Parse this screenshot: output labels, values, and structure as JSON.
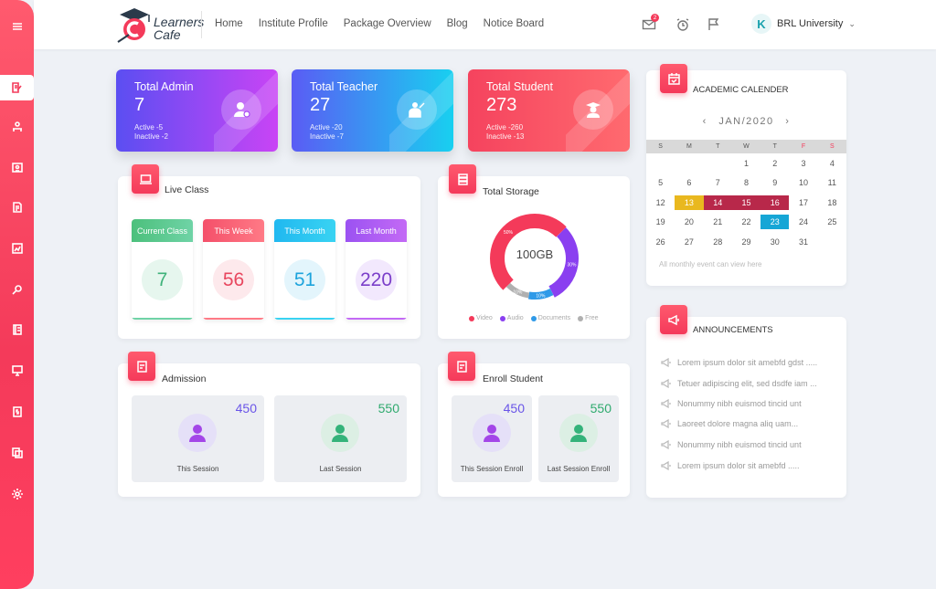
{
  "brand": {
    "name_line1": "Learners",
    "name_line2": "Cafe"
  },
  "nav": [
    "Home",
    "Institute Profile",
    "Package Overview",
    "Blog",
    "Notice Board"
  ],
  "header": {
    "mail_badge": "2",
    "university": "BRL University",
    "university_initial": "K"
  },
  "stats": [
    {
      "title": "Total Admin",
      "value": "7",
      "active": "Active -5",
      "inactive": "Inactive -2"
    },
    {
      "title": "Total Teacher",
      "value": "27",
      "active": "Active -20",
      "inactive": "Inactive -7"
    },
    {
      "title": "Total Student",
      "value": "273",
      "active": "Active -260",
      "inactive": "Inactive -13"
    }
  ],
  "live_class": {
    "title": "Live Class",
    "items": [
      {
        "label": "Current Class",
        "value": "7"
      },
      {
        "label": "This Week",
        "value": "56"
      },
      {
        "label": "This Month",
        "value": "51"
      },
      {
        "label": "Last Month",
        "value": "220"
      }
    ]
  },
  "storage": {
    "title": "Total Storage",
    "center": "100GB",
    "segments": [
      {
        "name": "Video",
        "percent": 50,
        "label": "50%",
        "color": "#f43a5a"
      },
      {
        "name": "Audio",
        "percent": 30,
        "label": "30%",
        "color": "#8a3ff0"
      },
      {
        "name": "Documents",
        "percent": 10,
        "label": "10%",
        "color": "#2f9ae8"
      },
      {
        "name": "Free",
        "percent": 10,
        "label": "10%",
        "color": "#b0b0b0"
      }
    ]
  },
  "admission": {
    "title": "Admission",
    "items": [
      {
        "label": "This Session",
        "value": "450"
      },
      {
        "label": "Last Session",
        "value": "550"
      }
    ]
  },
  "enroll": {
    "title": "Enroll Student",
    "items": [
      {
        "label": "This Session Enroll",
        "value": "450"
      },
      {
        "label": "Last Session Enroll",
        "value": "550"
      }
    ]
  },
  "calendar": {
    "title": "ACADEMIC CALENDER",
    "month": "JAN/2020",
    "prev": "‹",
    "next": "›",
    "weekdays": [
      "S",
      "M",
      "T",
      "W",
      "T",
      "F",
      "S"
    ],
    "weeks": [
      [
        "",
        "",
        "",
        "1",
        "2",
        "3",
        "4"
      ],
      [
        "5",
        "6",
        "7",
        "8",
        "9",
        "10",
        "11"
      ],
      [
        "12",
        "13",
        "14",
        "15",
        "16",
        "17",
        "18"
      ],
      [
        "19",
        "20",
        "21",
        "22",
        "23",
        "24",
        "25"
      ],
      [
        "26",
        "27",
        "28",
        "29",
        "30",
        "31",
        ""
      ]
    ],
    "note": "All monthly event can view here"
  },
  "announcements": {
    "title": "ANNOUNCEMENTS",
    "items": [
      "Lorem ipsum dolor sit amebfd gdst .....",
      "Tetuer adipiscing elit, sed dsdfe iam ...",
      "Nonummy nibh euismod tincid  unt",
      "Laoreet dolore magna aliq  uam...",
      "Nonummy nibh euismod tincid  unt",
      "Lorem ipsum dolor sit amebfd ....."
    ]
  }
}
